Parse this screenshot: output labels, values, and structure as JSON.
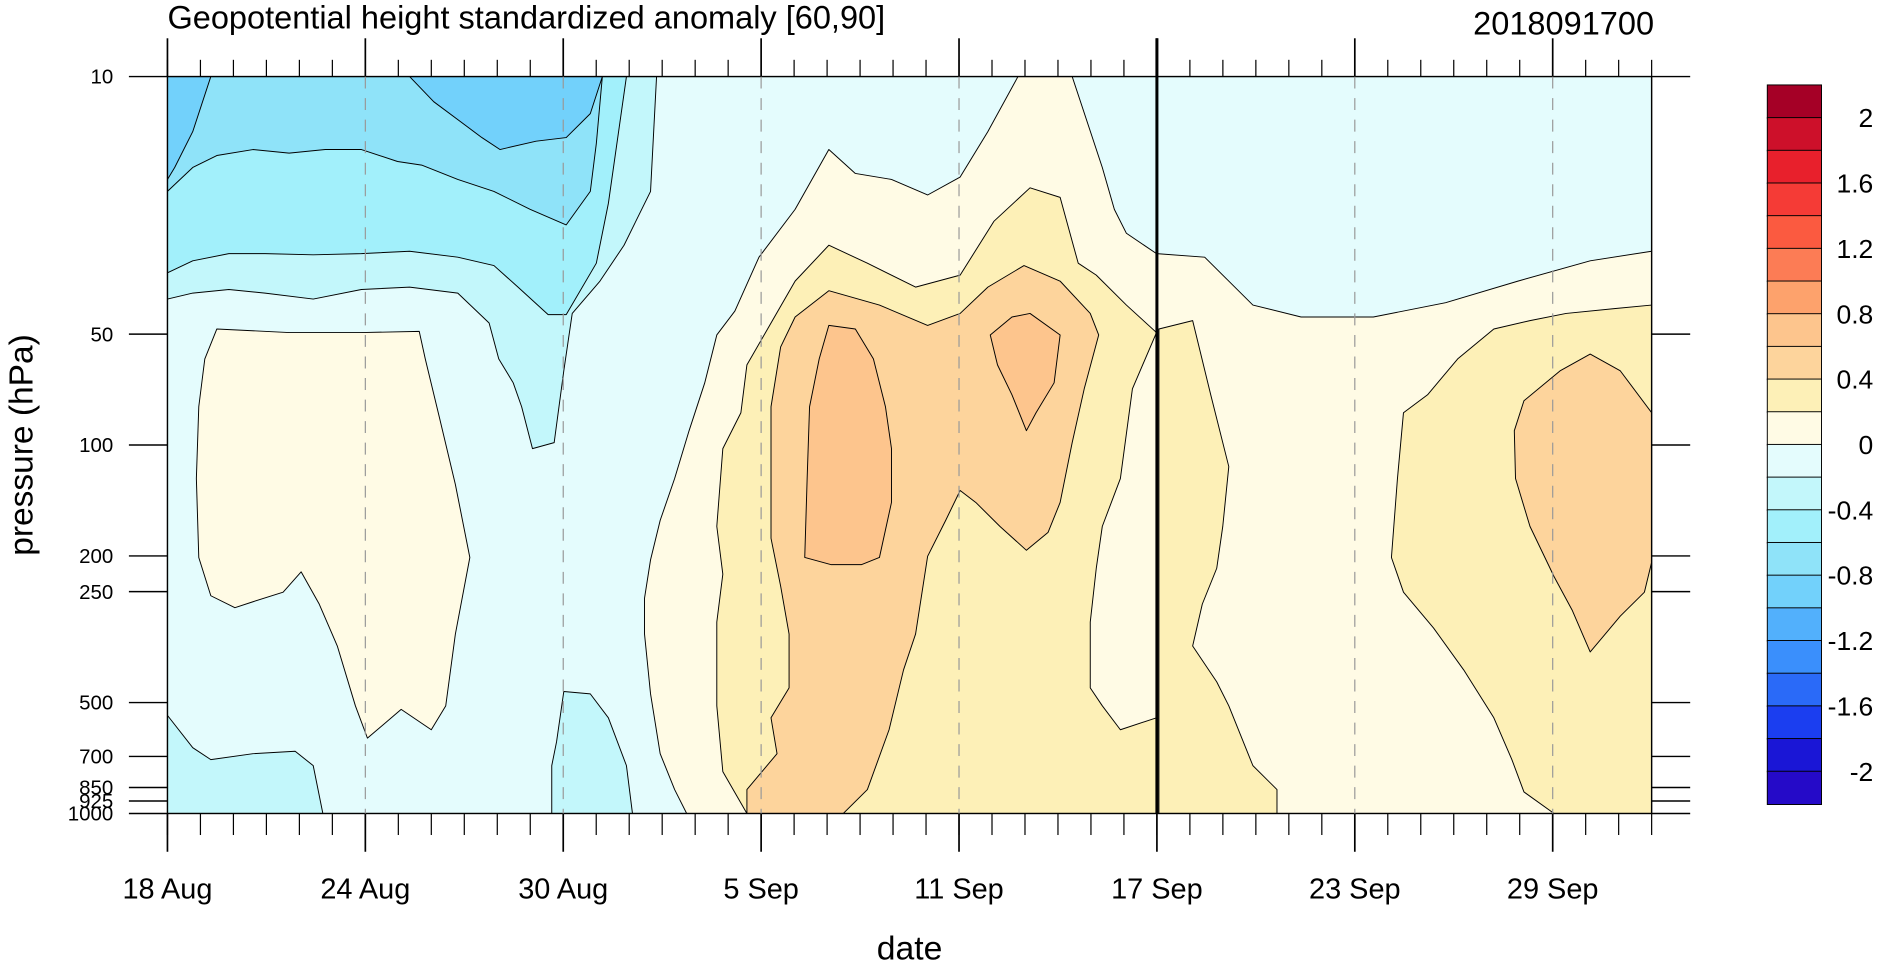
{
  "header": {
    "title": "Geopotential height standardized anomaly [60,90]",
    "date_stamp": "2018091700"
  },
  "chart_data": {
    "type": "heatmap",
    "variant": "filled-contour",
    "title": "Geopotential height standardized anomaly [60,90]",
    "annotation_right": "2018091700",
    "xlabel": "date",
    "ylabel": "pressure (hPa)",
    "y_scale": "log",
    "y_reversed": true,
    "y_ticks": [
      10,
      50,
      100,
      200,
      250,
      500,
      700,
      850,
      925,
      1000
    ],
    "y_tick_labels": [
      "10",
      "50",
      "100",
      "200",
      "250",
      "500",
      "700",
      "850",
      "925",
      "1000"
    ],
    "x_range": [
      "2018-08-18",
      "2018-10-02"
    ],
    "x_ticks": [
      "2018-08-18",
      "2018-08-24",
      "2018-08-30",
      "2018-09-05",
      "2018-09-11",
      "2018-09-17",
      "2018-09-23",
      "2018-09-29"
    ],
    "x_tick_labels": [
      "18 Aug",
      "24 Aug",
      "30 Aug",
      "5 Sep",
      "11 Sep",
      "17 Sep",
      "23 Sep",
      "29 Sep"
    ],
    "minor_ticks": "daily",
    "dashed_grid_at_major_x_ticks": true,
    "vertical_marker": "2018-09-17",
    "colorbar": {
      "levels": [
        -2,
        -1.8,
        -1.6,
        -1.4,
        -1.2,
        -1,
        -0.8,
        -0.6,
        -0.4,
        -0.2,
        0,
        0.2,
        0.4,
        0.6,
        0.8,
        1,
        1.2,
        1.4,
        1.6,
        1.8,
        2
      ],
      "labels": [
        "2",
        "1.6",
        "1.2",
        "0.8",
        "0.4",
        "0",
        "-0.4",
        "-0.8",
        "-1.2",
        "-1.6",
        "-2"
      ],
      "colors_top_to_bottom": [
        "#a50026",
        "#cd102a",
        "#e8202c",
        "#f53b36",
        "#fb5a40",
        "#fc7c55",
        "#fda26c",
        "#fdc58d",
        "#fdd49c",
        "#fdf0b7",
        "#fffbe5",
        "#e4fcfd",
        "#c3f7fb",
        "#a2f0fb",
        "#8fe3f9",
        "#72d1fb",
        "#52b0fc",
        "#3a8ffc",
        "#2a6af8",
        "#1b3ef0",
        "#1a16d6",
        "#250ac8"
      ]
    },
    "regions_description": [
      {
        "anomaly": "-1.0 to -0.8",
        "location": "18 Aug to 20 Aug at 10–20 hPa; 26 Aug to 30 Aug at 10–15 hPa"
      },
      {
        "anomaly": "-0.8 to -0.2",
        "location": "18 Aug to 3 Sep above ~50 hPa; 19 Sep to 2 Oct at 10–40 hPa"
      },
      {
        "anomaly": "0 to 0.2",
        "location": "19 Aug to 26 Aug at 50–500 hPa; 19 Sep to 2 Oct at 40–1000 hPa"
      },
      {
        "anomaly": "0.4 to 0.6",
        "location": "5 Sep to 14 Sep at 40–1000 hPa"
      },
      {
        "anomaly": "0.6 to 0.8",
        "location": "7 Sep to 10 Sep at 50–200 hPa; 12 Sep to 14 Sep at 50–80 hPa; 27 Sep to 2 Oct at 60–350 hPa"
      }
    ]
  },
  "colors": {
    "background": "#ffffff",
    "contour_line": "#000000"
  }
}
